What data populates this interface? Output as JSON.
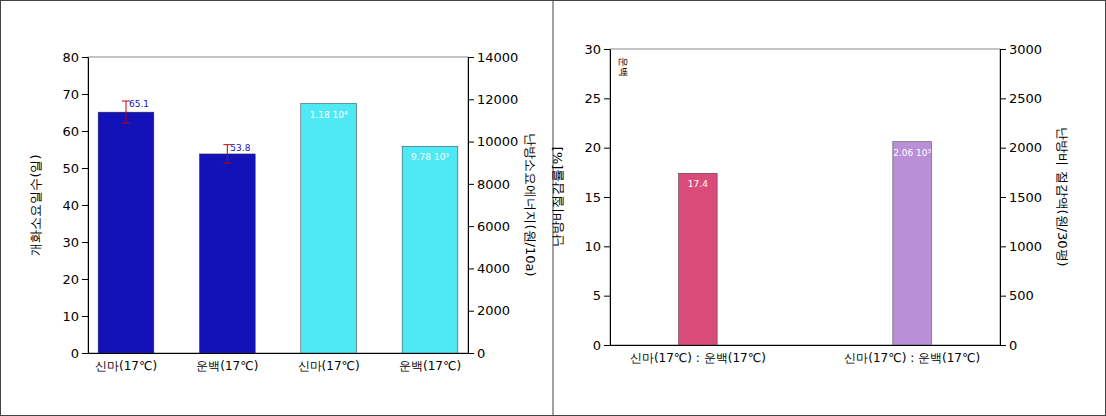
{
  "chart_data": [
    {
      "type": "bar",
      "ylabel": "개화소요일수(일)",
      "y2label": "난방소요에너지(원/10a)",
      "categories": [
        "신마(17℃)",
        "운백(17℃)",
        "신마(17℃)",
        "운백(17℃)"
      ],
      "series": [
        {
          "color": "#1212b8",
          "values": [
            65.1,
            53.8,
            null,
            null
          ],
          "errors": [
            3,
            2.5,
            null,
            null
          ]
        },
        {
          "color": "#4ee9f5",
          "axis": "y2",
          "values": [
            null,
            null,
            11800,
            9780
          ],
          "value_labels": [
            null,
            null,
            "1.18 10⁴",
            "9.78 10³"
          ]
        }
      ],
      "ylim": [
        0,
        80
      ],
      "yticks": [
        0,
        10,
        20,
        30,
        40,
        50,
        60,
        70,
        80
      ],
      "y2lim": [
        0,
        14000
      ],
      "y2ticks": [
        0,
        2000,
        4000,
        6000,
        8000,
        10000,
        12000,
        14000
      ],
      "grid": false,
      "data_labels": true
    },
    {
      "type": "bar",
      "ylabel": "난방비절감률[%]",
      "y2label": "난방비 절감액(원/30평)",
      "annotations": [
        "운백"
      ],
      "categories": [
        "신마(17℃) : 운백(17℃)",
        "신마(17℃) : 운백(17℃)"
      ],
      "series": [
        {
          "color": "#d94c7a",
          "values": [
            17.4,
            null
          ]
        },
        {
          "color": "#b98fd8",
          "axis": "y2",
          "values": [
            null,
            2060
          ],
          "value_labels": [
            null,
            "2.06 10³"
          ]
        }
      ],
      "ylim": [
        0,
        30
      ],
      "yticks": [
        0,
        5,
        10,
        15,
        20,
        25,
        30
      ],
      "y2lim": [
        0,
        3000
      ],
      "y2ticks": [
        0,
        500,
        1000,
        1500,
        2000,
        2500,
        3000
      ],
      "grid": false,
      "data_labels": true
    }
  ]
}
